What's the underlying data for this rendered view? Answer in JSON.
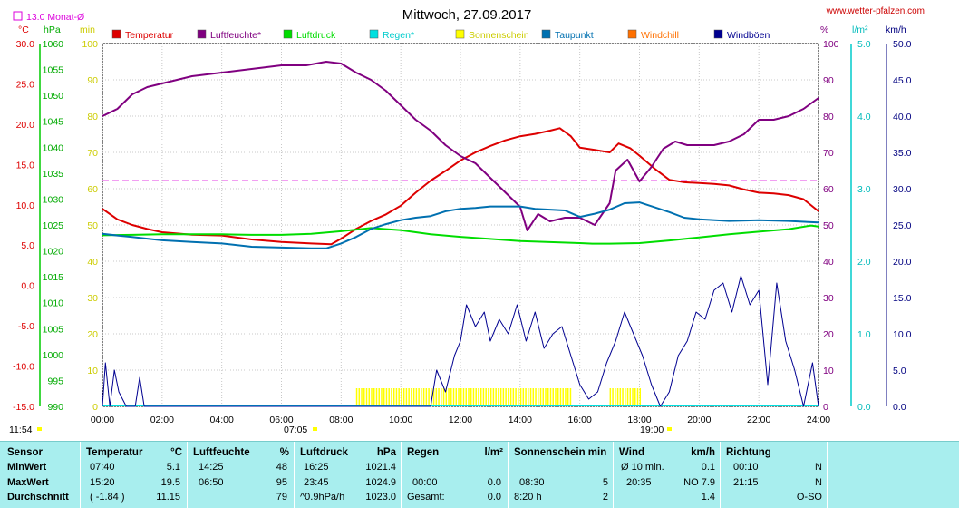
{
  "title": "Mittwoch, 27.09.2017",
  "site": "www.wetter-pfalzen.com",
  "month_avg_label": "13.0 Monat-Ø",
  "legend": [
    {
      "name": "Temperatur",
      "color": "#dd0000"
    },
    {
      "name": "Luftfeuchte*",
      "color": "#800080"
    },
    {
      "name": "Luftdruck",
      "color": "#00dd00"
    },
    {
      "name": "Regen*",
      "color": "#00e0e0"
    },
    {
      "name": "Sonnenschein",
      "color": "#ffff00"
    },
    {
      "name": "Taupunkt",
      "color": "#0070b0"
    },
    {
      "name": "Windchill",
      "color": "#ff7000"
    },
    {
      "name": "Windböen",
      "color": "#000090"
    }
  ],
  "axis_units": {
    "temp": "°C",
    "pressure": "hPa",
    "sun": "min",
    "humidity": "%",
    "rain": "l/m²",
    "wind": "km/h"
  },
  "left_markers": {
    "time": "11:54",
    "mid": "07:05",
    "right": "19:00"
  },
  "stats": {
    "headers": {
      "sensor": "Sensor",
      "temp": "Temperatur",
      "temp_unit": "°C",
      "hum": "Luftfeuchte",
      "hum_unit": "%",
      "press": "Luftdruck",
      "press_unit": "hPa",
      "rain": "Regen",
      "rain_unit": "l/m²",
      "sun": "Sonnenschein min",
      "wind": "Wind",
      "wind_unit": "km/h",
      "dir": "Richtung"
    },
    "rows": [
      "MinWert",
      "MaxWert",
      "Durchschnitt"
    ],
    "temp": [
      [
        "07:40",
        "5.1"
      ],
      [
        "15:20",
        "19.5"
      ],
      [
        "( -1.84 )",
        "11.15"
      ]
    ],
    "hum": [
      [
        "14:25",
        "48"
      ],
      [
        "06:50",
        "95"
      ],
      [
        "",
        "79"
      ]
    ],
    "press": [
      [
        "16:25",
        "1021.4"
      ],
      [
        "23:45",
        "1024.9"
      ],
      [
        "^0.9hPa/h",
        "1023.0"
      ]
    ],
    "rain": [
      [
        "",
        ""
      ],
      [
        "00:00",
        "0.0"
      ],
      [
        "Gesamt:",
        "0.0"
      ]
    ],
    "sun": [
      [
        "",
        ""
      ],
      [
        "08:30",
        "5"
      ],
      [
        "8:20 h",
        "2"
      ]
    ],
    "wind": [
      [
        "Ø 10 min.",
        "0.1"
      ],
      [
        "20:35",
        "NO 7.9"
      ],
      [
        "",
        "1.4"
      ]
    ],
    "dir": [
      [
        "00:10",
        "N"
      ],
      [
        "21:15",
        "N"
      ],
      [
        "",
        "O-SO"
      ]
    ]
  },
  "chart_data": {
    "type": "line",
    "title": "Mittwoch, 27.09.2017",
    "x_range_hours": [
      0,
      24
    ],
    "x_ticks": [
      "00:00",
      "02:00",
      "04:00",
      "06:00",
      "08:00",
      "10:00",
      "12:00",
      "14:00",
      "16:00",
      "18:00",
      "20:00",
      "22:00",
      "24:00"
    ],
    "axes": {
      "temp": {
        "range": [
          -15,
          30
        ],
        "ticks": [
          "30.0",
          "25.0",
          "20.0",
          "15.0",
          "10.0",
          "5.0",
          "0.0",
          "-5.0",
          "-10.0",
          "-15.0"
        ]
      },
      "pressure": {
        "range": [
          990,
          1060
        ],
        "ticks": [
          "1060",
          "1055",
          "1050",
          "1045",
          "1040",
          "1035",
          "1030",
          "1025",
          "1020",
          "1015",
          "1010",
          "1005",
          "1000",
          "995",
          "990"
        ]
      },
      "sun": {
        "range": [
          0,
          100
        ],
        "ticks": [
          "100",
          "90",
          "80",
          "70",
          "60",
          "50",
          "40",
          "30",
          "20",
          "10",
          "0"
        ]
      },
      "humidity": {
        "range": [
          0,
          100
        ],
        "ticks": [
          "100",
          "90",
          "80",
          "70",
          "60",
          "50",
          "40",
          "30",
          "20",
          "10",
          "0"
        ]
      },
      "rain": {
        "range": [
          0,
          5
        ],
        "ticks": [
          "5.0",
          "4.0",
          "3.0",
          "2.0",
          "1.0",
          "0.0"
        ]
      },
      "wind": {
        "range": [
          0,
          50
        ],
        "ticks": [
          "50.0",
          "45.0",
          "40.0",
          "35.0",
          "30.0",
          "25.0",
          "20.0",
          "15.0",
          "10.0",
          "5.0",
          "0.0"
        ]
      }
    },
    "month_avg_temp": 13.0,
    "series": [
      {
        "name": "Temperatur",
        "axis": "temp",
        "color": "#dd0000",
        "x": [
          0,
          0.5,
          1,
          1.5,
          2,
          3,
          4,
          5,
          6,
          7,
          7.67,
          8,
          8.5,
          9,
          9.5,
          10,
          10.5,
          11,
          11.5,
          12,
          12.5,
          13,
          13.5,
          14,
          14.5,
          15,
          15.33,
          15.7,
          16,
          16.5,
          17,
          17.3,
          17.7,
          18,
          18.5,
          19,
          19.5,
          20,
          20.5,
          21,
          21.5,
          22,
          22.5,
          23,
          23.5,
          24
        ],
        "y": [
          9.5,
          8.2,
          7.5,
          7.0,
          6.6,
          6.3,
          6.2,
          5.7,
          5.4,
          5.2,
          5.1,
          5.8,
          7.0,
          8.0,
          8.8,
          9.9,
          11.5,
          13.0,
          14.2,
          15.5,
          16.5,
          17.3,
          18.0,
          18.5,
          18.8,
          19.2,
          19.5,
          18.5,
          17.1,
          16.8,
          16.5,
          17.6,
          17.0,
          16.1,
          14.5,
          13.1,
          12.8,
          12.7,
          12.6,
          12.4,
          11.9,
          11.5,
          11.4,
          11.2,
          10.7,
          9.2
        ]
      },
      {
        "name": "Luftfeuchte*",
        "axis": "humidity",
        "color": "#800080",
        "x": [
          0,
          0.5,
          1,
          1.5,
          2,
          3,
          4,
          5,
          6,
          6.83,
          7.5,
          8,
          8.5,
          9,
          9.5,
          10,
          10.5,
          11,
          11.5,
          12,
          12.5,
          13,
          13.5,
          14,
          14.24,
          14.6,
          15,
          15.5,
          16,
          16.5,
          17,
          17.2,
          17.6,
          18,
          18.4,
          18.8,
          19.2,
          19.6,
          20,
          20.5,
          21,
          21.5,
          22,
          22.5,
          23,
          23.5,
          24
        ],
        "y": [
          80,
          82,
          86,
          88,
          89,
          91,
          92,
          93,
          94,
          94,
          95,
          94.5,
          92,
          90,
          87,
          83,
          79,
          76,
          72,
          69,
          67,
          63,
          59,
          55,
          48.5,
          53,
          51,
          52,
          52,
          50,
          56,
          65,
          68,
          62,
          66,
          71,
          73,
          72,
          72,
          72,
          73,
          75,
          79,
          79,
          80,
          82,
          85
        ]
      },
      {
        "name": "Luftdruck",
        "axis": "pressure",
        "color": "#00dd00",
        "x": [
          0,
          1,
          2,
          3,
          4,
          5,
          6,
          7,
          8,
          9,
          10,
          11,
          12,
          13,
          14,
          15,
          16,
          16.42,
          17,
          18,
          19,
          20,
          21,
          22,
          23,
          23.75,
          24
        ],
        "y": [
          1023.0,
          1023.1,
          1023.2,
          1023.2,
          1023.2,
          1023.1,
          1023.1,
          1023.3,
          1023.8,
          1024.4,
          1024.0,
          1023.2,
          1022.7,
          1022.3,
          1021.9,
          1021.7,
          1021.5,
          1021.4,
          1021.4,
          1021.5,
          1022.0,
          1022.6,
          1023.2,
          1023.7,
          1024.2,
          1024.9,
          1024.7
        ]
      },
      {
        "name": "Taupunkt",
        "axis": "temp",
        "color": "#0070b0",
        "x": [
          0,
          0.5,
          1,
          1.5,
          2,
          3,
          4,
          5,
          6,
          7,
          7.5,
          8,
          8.5,
          9,
          9.5,
          10,
          10.5,
          11,
          11.5,
          12,
          12.5,
          13,
          13.5,
          14,
          14.5,
          15,
          15.5,
          16,
          16.5,
          17,
          17.5,
          18,
          18.5,
          19,
          19.5,
          20,
          21,
          22,
          23,
          24
        ],
        "y": [
          6.4,
          6.2,
          6.0,
          5.8,
          5.6,
          5.4,
          5.2,
          4.8,
          4.7,
          4.6,
          4.6,
          5.2,
          6.0,
          7.0,
          7.6,
          8.1,
          8.4,
          8.6,
          9.2,
          9.5,
          9.6,
          9.8,
          9.8,
          9.8,
          9.5,
          9.4,
          9.3,
          8.5,
          8.9,
          9.4,
          10.2,
          10.3,
          9.7,
          9.1,
          8.4,
          8.2,
          8.0,
          8.1,
          8.0,
          7.8
        ]
      },
      {
        "name": "Windböen",
        "axis": "wind",
        "color": "#000090",
        "x": [
          0,
          0.1,
          0.25,
          0.4,
          0.55,
          0.8,
          1.1,
          1.25,
          1.4,
          11.0,
          11.2,
          11.5,
          11.8,
          12.0,
          12.2,
          12.5,
          12.8,
          13.0,
          13.3,
          13.6,
          13.9,
          14.2,
          14.5,
          14.8,
          15.1,
          15.4,
          15.7,
          16.0,
          16.3,
          16.6,
          16.9,
          17.2,
          17.5,
          17.8,
          18.1,
          18.4,
          18.7,
          19.0,
          19.3,
          19.6,
          19.9,
          20.2,
          20.5,
          20.8,
          21.1,
          21.4,
          21.7,
          22.0,
          22.3,
          22.6,
          22.9,
          23.2,
          23.5,
          23.8,
          24
        ],
        "y": [
          0,
          6,
          0,
          5,
          2,
          0,
          0,
          4,
          0,
          0,
          5,
          2,
          7,
          9,
          14,
          11,
          13,
          9,
          12,
          10,
          14,
          9,
          13,
          8,
          10,
          11,
          7,
          3,
          1,
          2,
          6,
          9,
          13,
          10,
          7,
          3,
          0,
          2,
          7,
          9,
          13,
          12,
          16,
          17,
          13,
          18,
          14,
          16,
          3,
          17,
          9,
          5,
          0,
          6,
          0
        ]
      },
      {
        "name": "Sonnenschein",
        "axis": "sun",
        "color": "#ffff00",
        "ranges": [
          [
            8.5,
            15.75
          ],
          [
            17.0,
            18.0
          ]
        ],
        "level": 5
      },
      {
        "name": "Regen*",
        "axis": "rain",
        "color": "#00e0e0",
        "values": [
          0
        ]
      }
    ]
  }
}
